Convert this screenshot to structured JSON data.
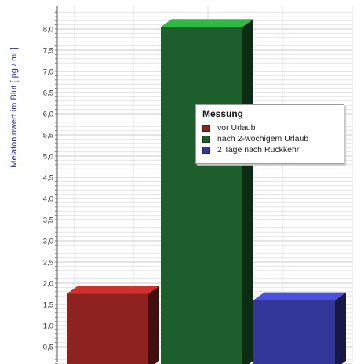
{
  "chart_data": {
    "type": "bar",
    "ylabel": "Melatoninwert im Blut  [ pg / ml ]",
    "ylim": [
      0,
      8.4
    ],
    "yticks": [
      "0,5",
      "1,0",
      "1,5",
      "2,0",
      "2,5",
      "3,0",
      "3,5",
      "4,0",
      "4,5",
      "5,0",
      "5,5",
      "6,0",
      "6,5",
      "7,0",
      "7,5",
      "8,0"
    ],
    "categories": [
      "vor Urlaub",
      "nach 2-wöchigem Urlaub",
      "2 Tage nach Rückkehr"
    ],
    "values": [
      1.75,
      8.05,
      1.6
    ],
    "legend": {
      "title": "Messung",
      "placement": "top-right",
      "entries": [
        "vor Urlaub",
        "nach 2-wöchigem Urlaub",
        "2 Tage nach Rückkehr"
      ]
    },
    "colors": [
      "#8e2220",
      "#1c5e2c",
      "#34379a"
    ],
    "grid": true
  }
}
